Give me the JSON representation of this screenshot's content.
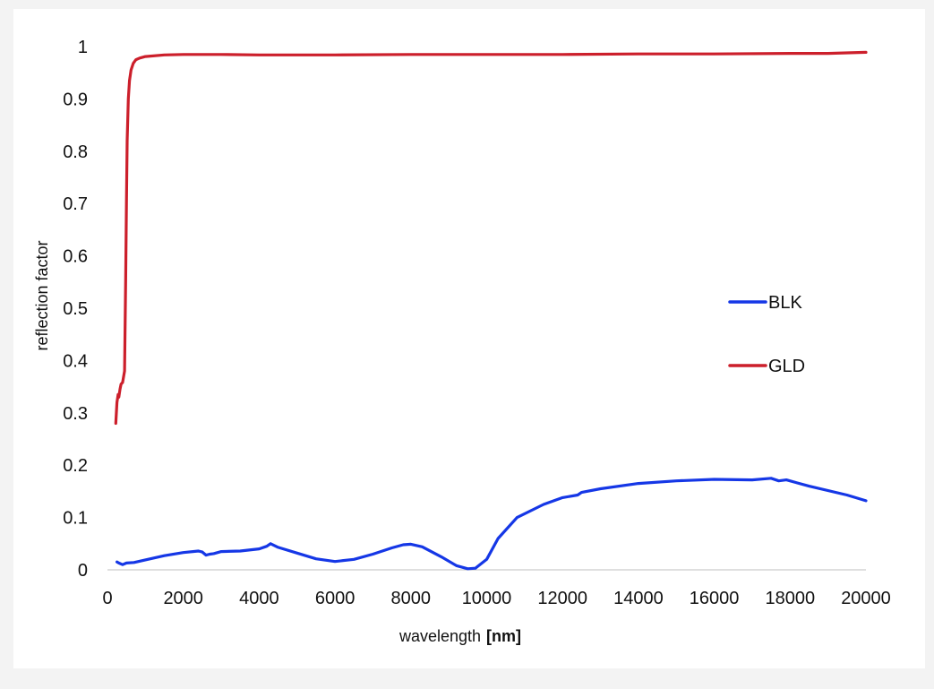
{
  "chart_data": {
    "type": "line",
    "title": "",
    "xlabel": "wavelength",
    "xlabel_unit": "[nm]",
    "ylabel": "reflection factor",
    "xlim": [
      0,
      20000
    ],
    "ylim": [
      0,
      1
    ],
    "x_ticks": [
      "0",
      "2000",
      "4000",
      "6000",
      "8000",
      "10000",
      "12000",
      "14000",
      "16000",
      "18000",
      "20000"
    ],
    "y_ticks": [
      "0",
      "0.1",
      "0.2",
      "0.3",
      "0.4",
      "0.5",
      "0.6",
      "0.7",
      "0.8",
      "0.9",
      "1"
    ],
    "grid": false,
    "legend_position": "right",
    "series": [
      {
        "name": "BLK",
        "color": "#1537e6",
        "x": [
          250,
          300,
          400,
          500,
          700,
          1000,
          1500,
          2000,
          2400,
          2500,
          2600,
          2700,
          2800,
          3000,
          3500,
          4000,
          4200,
          4300,
          4500,
          5000,
          5500,
          6000,
          6500,
          7000,
          7500,
          7800,
          8000,
          8300,
          8800,
          9200,
          9500,
          9700,
          10000,
          10300,
          10800,
          11500,
          12000,
          12400,
          12500,
          13000,
          14000,
          15000,
          16000,
          17000,
          17500,
          17700,
          17900,
          18500,
          19500,
          20000
        ],
        "y": [
          0.015,
          0.013,
          0.01,
          0.013,
          0.014,
          0.019,
          0.027,
          0.033,
          0.036,
          0.034,
          0.028,
          0.03,
          0.031,
          0.035,
          0.036,
          0.04,
          0.045,
          0.05,
          0.043,
          0.032,
          0.021,
          0.016,
          0.02,
          0.03,
          0.042,
          0.048,
          0.049,
          0.044,
          0.025,
          0.008,
          0.002,
          0.003,
          0.02,
          0.06,
          0.1,
          0.125,
          0.138,
          0.143,
          0.148,
          0.155,
          0.165,
          0.17,
          0.173,
          0.172,
          0.175,
          0.17,
          0.172,
          0.16,
          0.143,
          0.132
        ]
      },
      {
        "name": "GLD",
        "color": "#cc1f2b",
        "x": [
          220,
          250,
          280,
          300,
          330,
          360,
          400,
          450,
          480,
          500,
          520,
          550,
          580,
          620,
          680,
          750,
          850,
          1000,
          1500,
          2000,
          3000,
          4000,
          6000,
          8000,
          10000,
          12000,
          14000,
          16000,
          18000,
          19000,
          20000
        ],
        "y": [
          0.28,
          0.32,
          0.335,
          0.33,
          0.345,
          0.355,
          0.358,
          0.38,
          0.55,
          0.7,
          0.82,
          0.9,
          0.935,
          0.955,
          0.968,
          0.975,
          0.978,
          0.981,
          0.984,
          0.985,
          0.985,
          0.984,
          0.984,
          0.985,
          0.985,
          0.985,
          0.986,
          0.986,
          0.987,
          0.987,
          0.989
        ]
      }
    ]
  }
}
